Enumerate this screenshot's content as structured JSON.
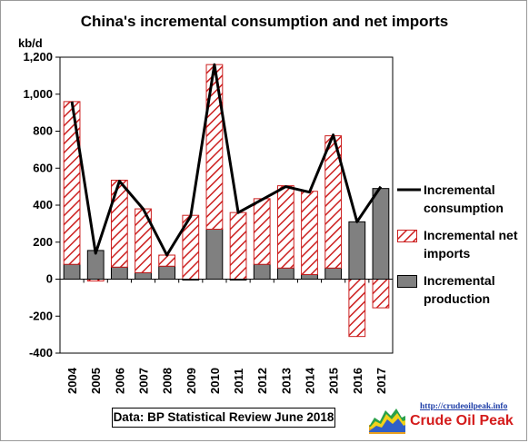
{
  "chart_data": {
    "type": "bar",
    "title": "China's incremental consumption and net imports",
    "ylabel": "kb/d",
    "xlabel": "",
    "ylim": [
      -400,
      1200
    ],
    "yticks": [
      "-400",
      "-200",
      "0",
      "200",
      "400",
      "600",
      "800",
      "1,000",
      "1,200"
    ],
    "categories": [
      "2004",
      "2005",
      "2006",
      "2007",
      "2008",
      "2009",
      "2010",
      "2011",
      "2012",
      "2013",
      "2014",
      "2015",
      "2016",
      "2017"
    ],
    "grid": false,
    "legend_position": "right",
    "series": [
      {
        "name": "Incremental consumption",
        "kind": "line",
        "color": "#000000",
        "values": [
          960,
          140,
          530,
          380,
          130,
          340,
          1160,
          360,
          430,
          500,
          470,
          780,
          310,
          500
        ]
      },
      {
        "name": "Incremental net imports",
        "kind": "bar",
        "pattern": "red-diagonal-hatch",
        "color": "#cc0000",
        "values": [
          880,
          -10,
          470,
          345,
          60,
          345,
          890,
          360,
          355,
          445,
          450,
          715,
          -310,
          -155
        ]
      },
      {
        "name": "Incremental production",
        "kind": "bar",
        "color": "#808080",
        "values": [
          80,
          155,
          65,
          35,
          70,
          -5,
          270,
          -5,
          80,
          60,
          25,
          60,
          310,
          490
        ]
      }
    ]
  },
  "legend": [
    {
      "icon": "line-swatch-icon",
      "label": "Incremental consumption"
    },
    {
      "icon": "hatched-swatch-icon",
      "label": "Incremental net imports"
    },
    {
      "icon": "gray-swatch-icon",
      "label": "Incremental production"
    }
  ],
  "source_note": "Data: BP Statistical Review June 2018",
  "logo": {
    "url": "http://crudeoilpeak.info",
    "name": "Crude Oil Peak",
    "icon": "oil-peak-logo-icon"
  }
}
